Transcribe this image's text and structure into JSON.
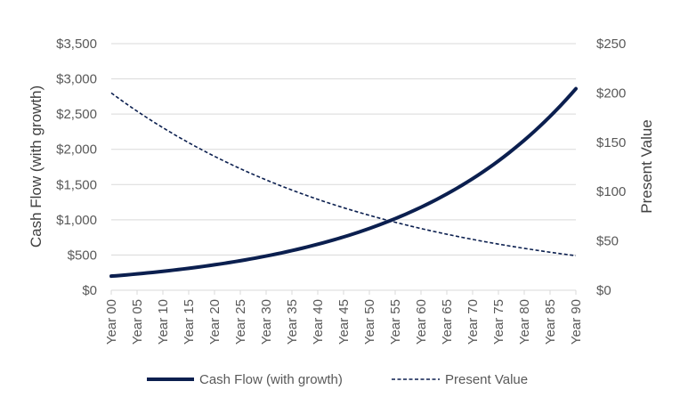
{
  "chart_data": {
    "type": "line",
    "x": [
      "Year 00",
      "Year 01",
      "Year 02",
      "Year 03",
      "Year 04",
      "Year 05",
      "Year 06",
      "Year 07",
      "Year 08",
      "Year 09",
      "Year 10",
      "Year 11",
      "Year 12",
      "Year 13",
      "Year 14",
      "Year 15",
      "Year 16",
      "Year 17",
      "Year 18",
      "Year 19",
      "Year 20",
      "Year 21",
      "Year 22",
      "Year 23",
      "Year 24",
      "Year 25",
      "Year 26",
      "Year 27",
      "Year 28",
      "Year 29",
      "Year 30",
      "Year 31",
      "Year 32",
      "Year 33",
      "Year 34",
      "Year 35",
      "Year 36",
      "Year 37",
      "Year 38",
      "Year 39",
      "Year 40",
      "Year 41",
      "Year 42",
      "Year 43",
      "Year 44",
      "Year 45",
      "Year 46",
      "Year 47",
      "Year 48",
      "Year 49",
      "Year 50",
      "Year 51",
      "Year 52",
      "Year 53",
      "Year 54",
      "Year 55",
      "Year 56",
      "Year 57",
      "Year 58",
      "Year 59",
      "Year 60",
      "Year 61",
      "Year 62",
      "Year 63",
      "Year 64",
      "Year 65",
      "Year 66",
      "Year 67",
      "Year 68",
      "Year 69",
      "Year 70",
      "Year 71",
      "Year 72",
      "Year 73",
      "Year 74",
      "Year 75",
      "Year 76",
      "Year 77",
      "Year 78",
      "Year 79",
      "Year 80",
      "Year 81",
      "Year 82",
      "Year 83",
      "Year 84",
      "Year 85",
      "Year 86",
      "Year 87",
      "Year 88",
      "Year 89",
      "Year 90"
    ],
    "tick_labels": [
      "Year 00",
      "Year 05",
      "Year 10",
      "Year 15",
      "Year 20",
      "Year 25",
      "Year 30",
      "Year 35",
      "Year 40",
      "Year 45",
      "Year 50",
      "Year 55",
      "Year 60",
      "Year 65",
      "Year 70",
      "Year 75",
      "Year 80",
      "Year 85",
      "Year 90"
    ],
    "series": [
      {
        "name": "Cash Flow (with growth)",
        "axis": "left",
        "color": "#0b1f4f",
        "style": "solid",
        "start": 200,
        "end": 2860,
        "growth_rate": 0.03
      },
      {
        "name": "Present Value",
        "axis": "right",
        "color": "#0b1f4f",
        "style": "dashed",
        "start": 200,
        "end": 35,
        "decay_rate": 0.0192
      }
    ],
    "ylabel": "Cash Flow (with growth)",
    "y2label": "Present Value",
    "ylim": [
      0,
      3500
    ],
    "y_ticks": [
      "$0",
      "$500",
      "$1,000",
      "$1,500",
      "$2,000",
      "$2,500",
      "$3,000",
      "$3,500"
    ],
    "y2lim": [
      0,
      250
    ],
    "y2_ticks": [
      "$0",
      "$50",
      "$100",
      "$150",
      "$200",
      "$250"
    ],
    "grid": "horizontal",
    "legend": "bottom"
  }
}
